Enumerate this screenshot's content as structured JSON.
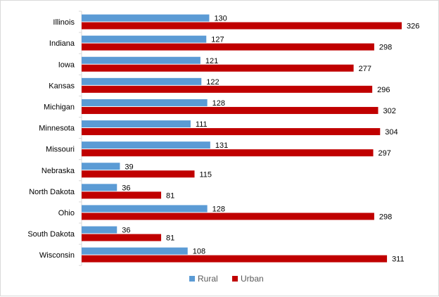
{
  "chart_data": {
    "type": "bar",
    "orientation": "horizontal",
    "categories": [
      "Illinois",
      "Indiana",
      "Iowa",
      "Kansas",
      "Michigan",
      "Minnesota",
      "Missouri",
      "Nebraska",
      "North Dakota",
      "Ohio",
      "South Dakota",
      "Wisconsin"
    ],
    "series": [
      {
        "name": "Rural",
        "color": "#5b9bd5",
        "values": [
          130,
          127,
          121,
          122,
          128,
          111,
          131,
          39,
          36,
          128,
          36,
          108
        ]
      },
      {
        "name": "Urban",
        "color": "#c00000",
        "values": [
          326,
          298,
          277,
          296,
          302,
          304,
          297,
          115,
          81,
          298,
          81,
          311
        ]
      }
    ],
    "xlim": [
      0,
      350
    ],
    "grid": false,
    "legend": "bottom",
    "data_labels": true
  }
}
